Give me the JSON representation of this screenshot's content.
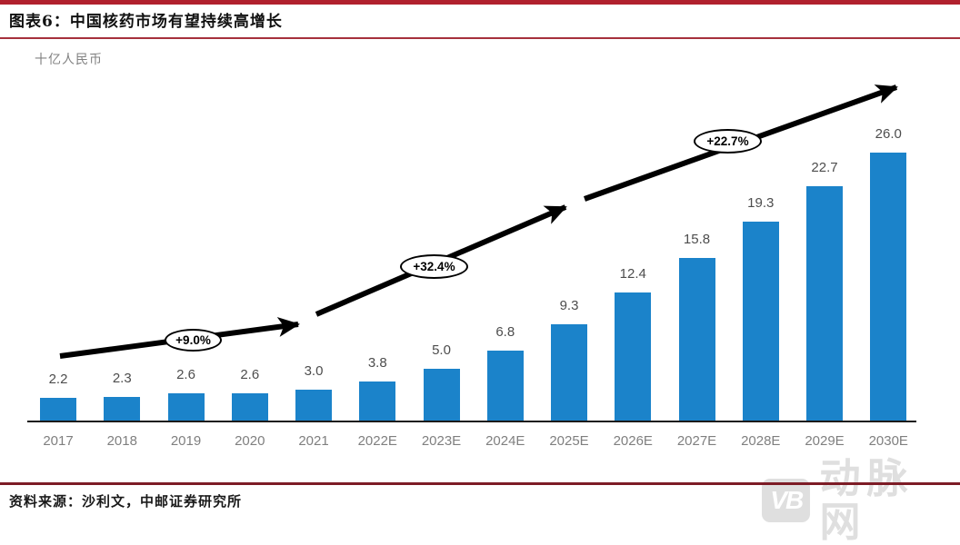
{
  "header": {
    "title": "图表6：中国核药市场有望持续高增长"
  },
  "chart_data": {
    "type": "bar",
    "title": "中国核药市场有望持续高增长",
    "unit_label": "十亿人民币",
    "categories": [
      "2017",
      "2018",
      "2019",
      "2020",
      "2021",
      "2022E",
      "2023E",
      "2024E",
      "2025E",
      "2026E",
      "2027E",
      "2028E",
      "2029E",
      "2030E"
    ],
    "values": [
      2.2,
      2.3,
      2.6,
      2.6,
      3.0,
      3.8,
      5.0,
      6.8,
      9.3,
      12.4,
      15.8,
      19.3,
      22.7,
      26.0
    ],
    "value_decimals": 1,
    "ylim": [
      0,
      28
    ],
    "grid": false,
    "legend": "none",
    "bar_color": "#1B83CA",
    "annotations": [
      {
        "label": "+9.0%"
      },
      {
        "label": "+32.4%"
      },
      {
        "label": "+22.7%"
      }
    ],
    "trend_arrow": true
  },
  "footer": {
    "source": "资料来源：沙利文，中邮证券研究所"
  },
  "watermark": {
    "logo": "VB",
    "name": "动脉网"
  },
  "colors": {
    "bar": "#1B83CA",
    "header_rule": "#B1212E",
    "title_rule": "#A6303C",
    "footer_rule": "#7D1C26",
    "axis": "#1A1A1A",
    "value_label": "#4D4D4D",
    "tick_label": "#7F7F7F",
    "watermark": "#DFDFDF"
  }
}
